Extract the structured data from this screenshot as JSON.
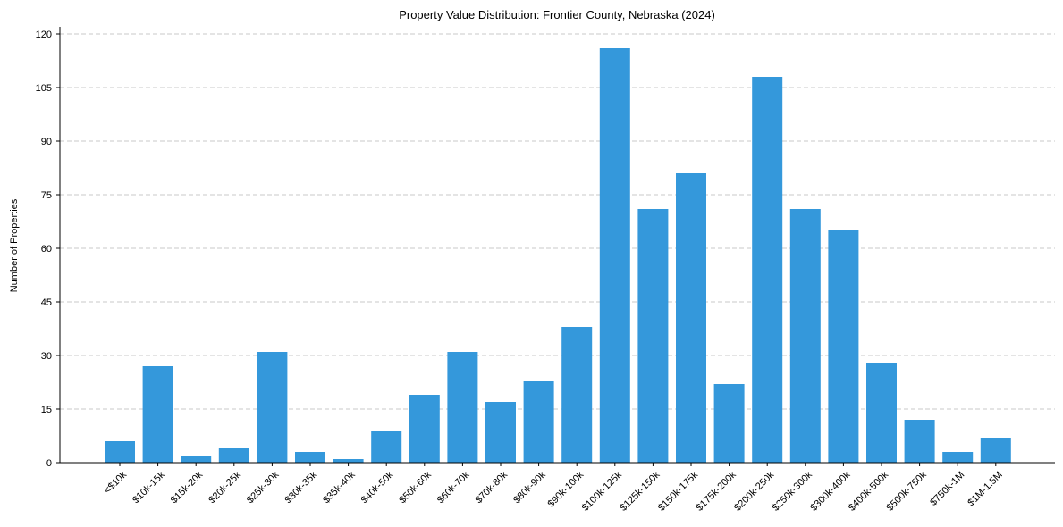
{
  "chart_data": {
    "type": "bar",
    "title": "Property Value Distribution: Frontier County, Nebraska (2024)",
    "xlabel": "",
    "ylabel": "Number of Properties",
    "categories": [
      "<$10k",
      "$10k-15k",
      "$15k-20k",
      "$20k-25k",
      "$25k-30k",
      "$30k-35k",
      "$35k-40k",
      "$40k-50k",
      "$50k-60k",
      "$60k-70k",
      "$70k-80k",
      "$80k-90k",
      "$90k-100k",
      "$100k-125k",
      "$125k-150k",
      "$150k-175k",
      "$175k-200k",
      "$200k-250k",
      "$250k-300k",
      "$300k-400k",
      "$400k-500k",
      "$500k-750k",
      "$750k-1M",
      "$1M-1.5M"
    ],
    "values": [
      6,
      27,
      2,
      4,
      31,
      3,
      1,
      9,
      19,
      31,
      17,
      23,
      38,
      116,
      71,
      81,
      22,
      108,
      71,
      65,
      28,
      12,
      3,
      7
    ],
    "ylim": [
      0,
      122
    ],
    "yticks": [
      0,
      15,
      30,
      45,
      60,
      75,
      90,
      105,
      120
    ],
    "ytick_labels": [
      "0",
      "15",
      "30",
      "45",
      "60",
      "75",
      "90",
      "105",
      "120"
    ],
    "grid": "y-dashed",
    "bar_color": "#3498db"
  }
}
